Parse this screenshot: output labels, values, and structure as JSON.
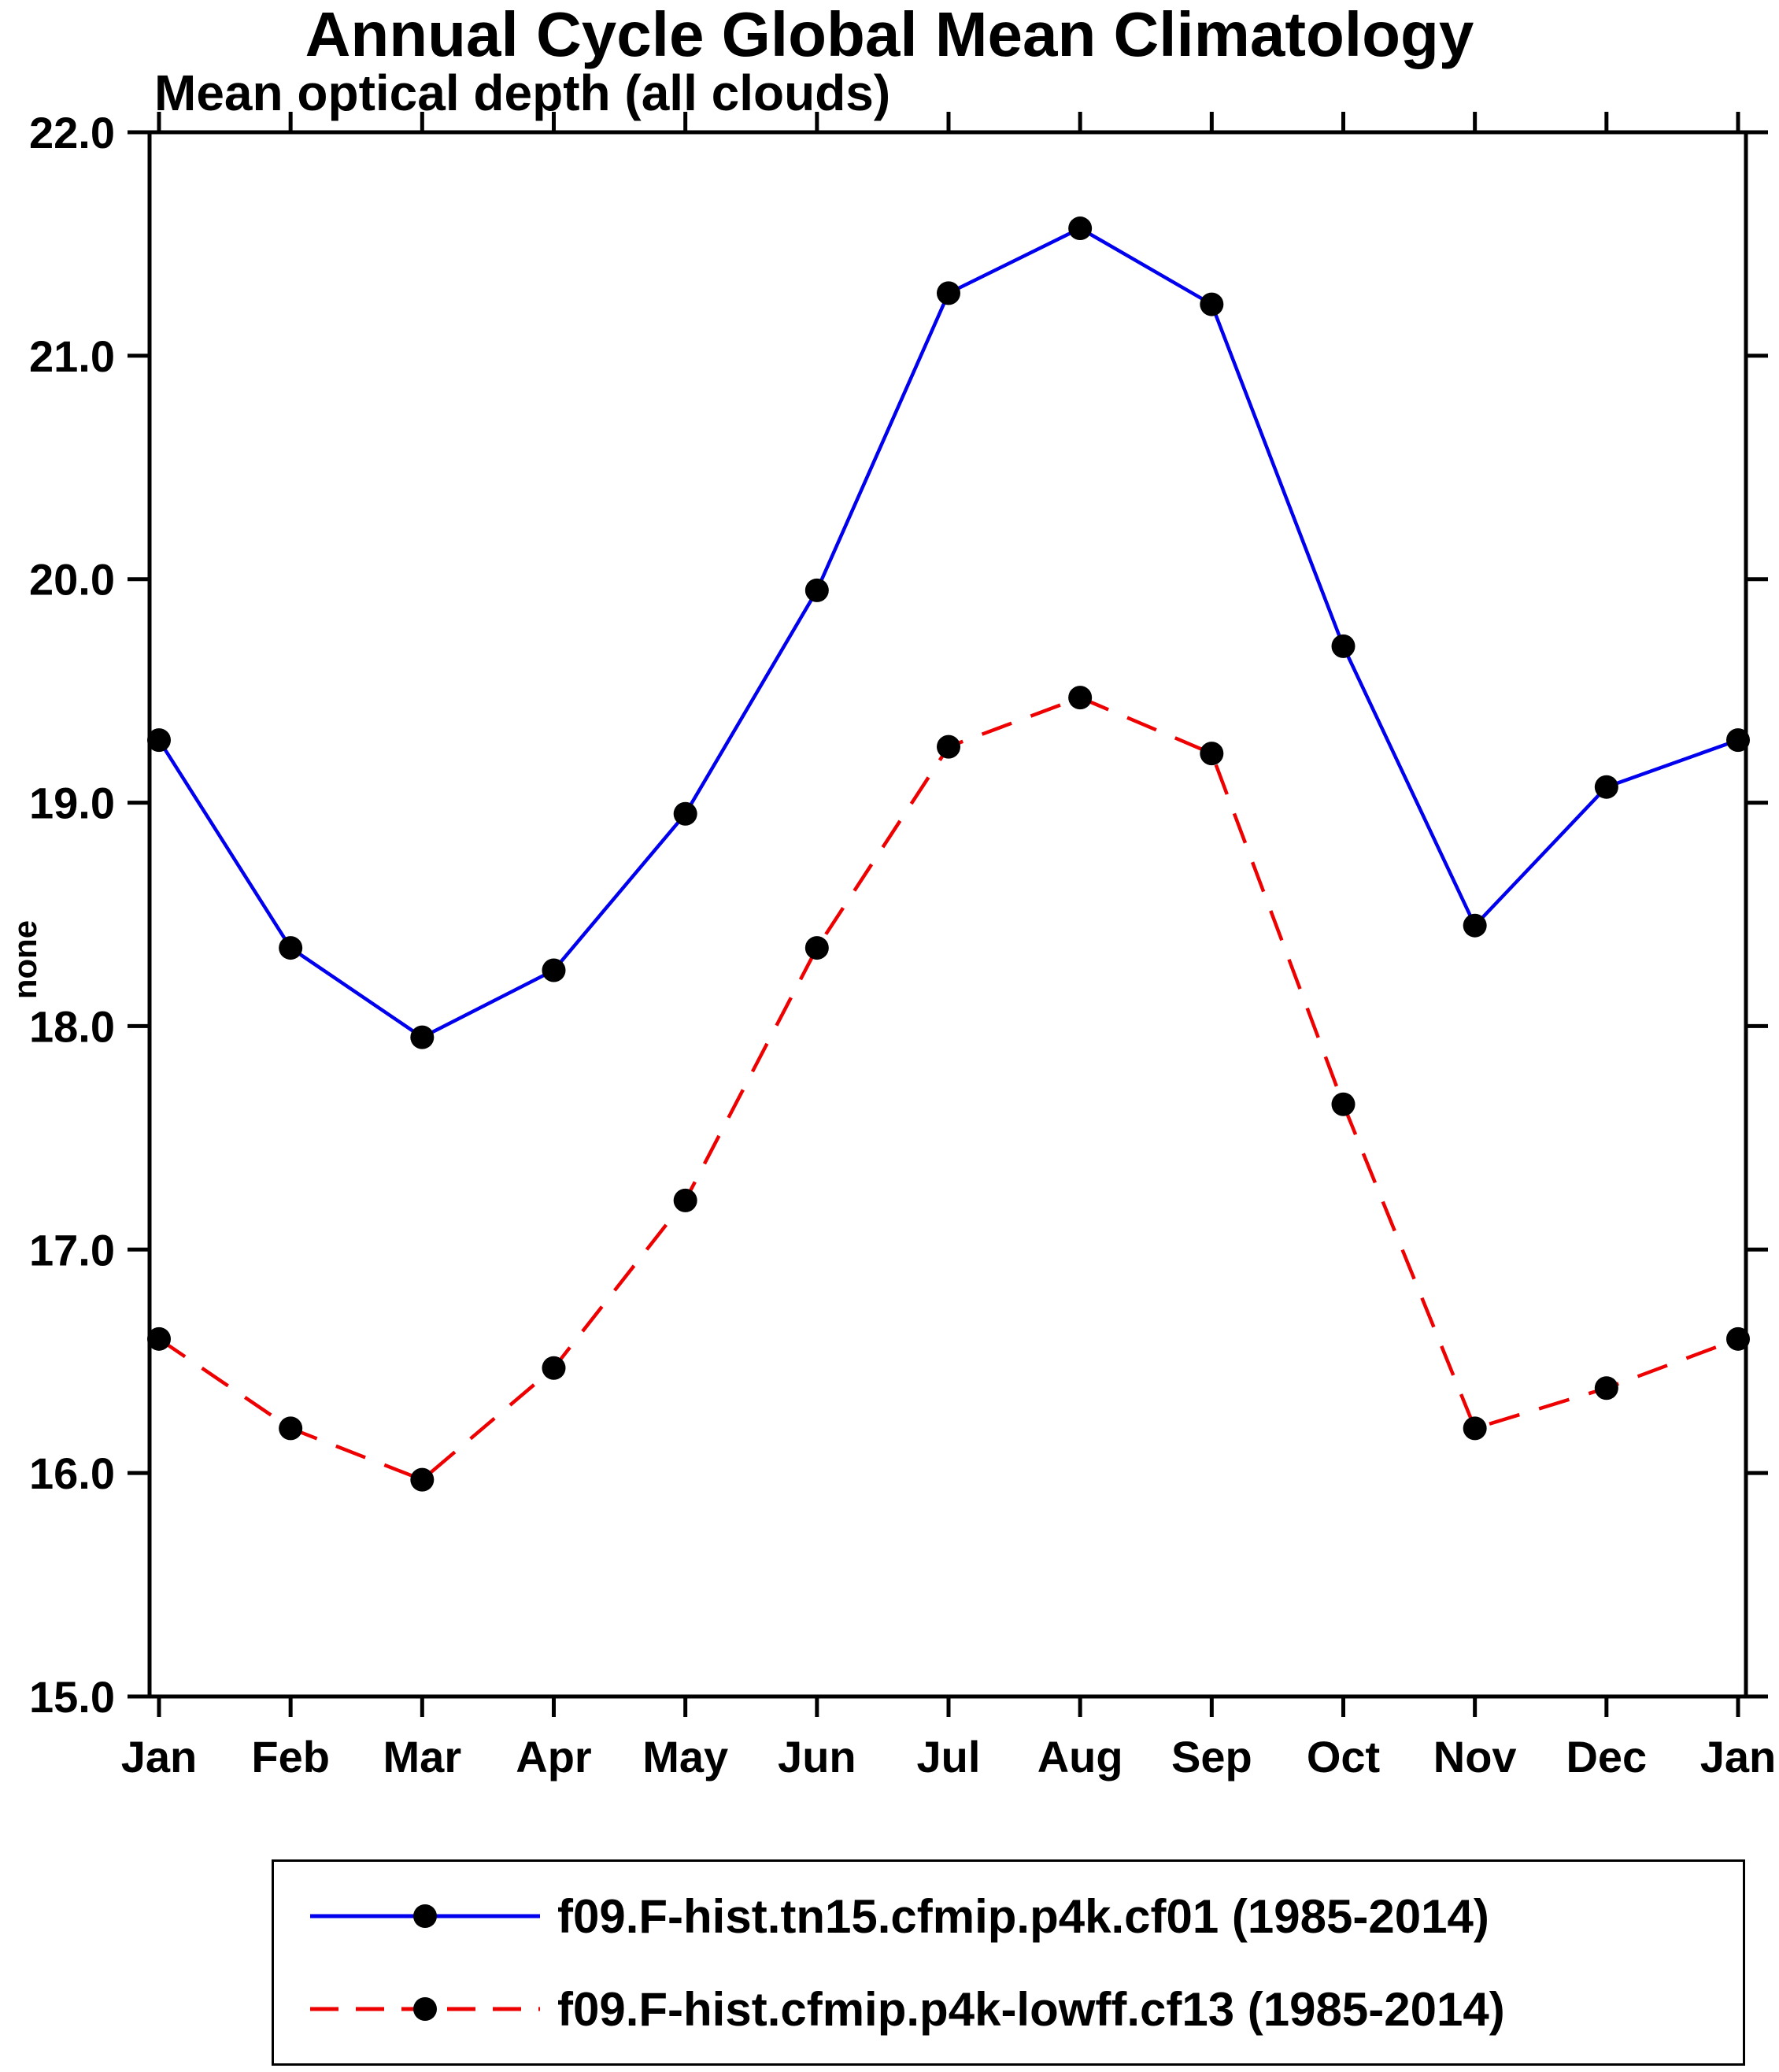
{
  "title": "Annual Cycle Global Mean Climatology",
  "subtitle": "Mean optical depth (all clouds)",
  "chart_data": {
    "type": "line",
    "title": "Annual Cycle Global Mean Climatology",
    "subtitle": "Mean optical depth (all clouds)",
    "xlabel": "",
    "ylabel": "none",
    "categories": [
      "Jan",
      "Feb",
      "Mar",
      "Apr",
      "May",
      "Jun",
      "Jul",
      "Aug",
      "Sep",
      "Oct",
      "Nov",
      "Dec",
      "Jan"
    ],
    "ylim": [
      15.0,
      22.0
    ],
    "yticks": [
      22.0,
      21.0,
      20.0,
      19.0,
      18.0,
      17.0,
      16.0,
      15.0
    ],
    "ytick_labels": [
      "22.0",
      "21.0",
      "20.0",
      "19.0",
      "18.0",
      "17.0",
      "16.0",
      "15.0"
    ],
    "grid": false,
    "legend_position": "bottom",
    "series": [
      {
        "name": "f09.F-hist.tn15.cfmip.p4k.cf01 (1985-2014)",
        "color": "#0000ee",
        "style": "solid",
        "marker": "circle",
        "marker_color": "#000000",
        "values": [
          19.28,
          18.35,
          17.95,
          18.25,
          18.95,
          19.95,
          21.28,
          21.57,
          21.23,
          19.7,
          18.45,
          19.07,
          19.28
        ]
      },
      {
        "name": "f09.F-hist.cfmip.p4k-lowff.cf13 (1985-2014)",
        "color": "#ee0000",
        "style": "dashed",
        "marker": "circle",
        "marker_color": "#000000",
        "values": [
          16.6,
          16.2,
          15.97,
          16.47,
          17.22,
          18.35,
          19.25,
          19.47,
          19.22,
          17.65,
          16.2,
          16.38,
          16.6
        ]
      }
    ],
    "axis_color": "#000000",
    "background_color": "#ffffff"
  }
}
